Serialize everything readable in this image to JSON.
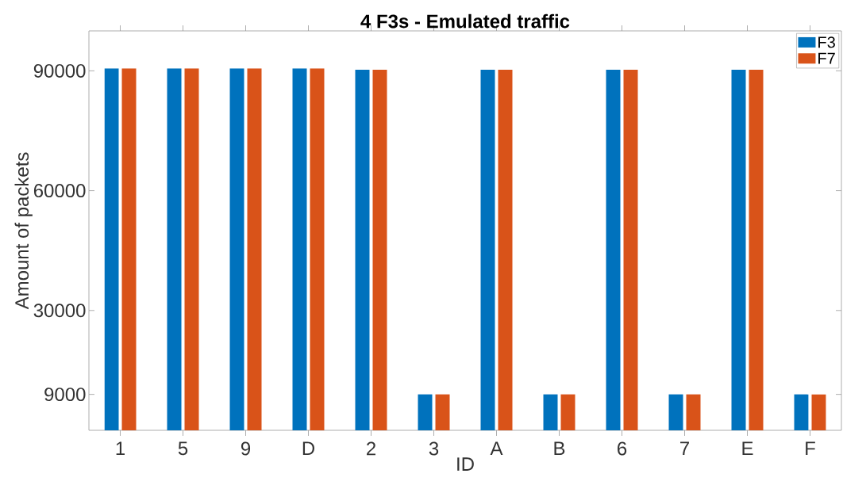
{
  "chart_data": {
    "type": "bar",
    "title": "4 F3s - Emulated traffic",
    "xlabel": "ID",
    "ylabel": "Amount of packets",
    "categories": [
      "1",
      "5",
      "9",
      "D",
      "2",
      "3",
      "A",
      "B",
      "6",
      "7",
      "E",
      "F"
    ],
    "series": [
      {
        "name": "F3",
        "color": "#0072bd",
        "values": [
          90600,
          90600,
          90600,
          90600,
          90300,
          9000,
          90300,
          9000,
          90300,
          9000,
          90300,
          9000
        ]
      },
      {
        "name": "F7",
        "color": "#d95319",
        "values": [
          90600,
          90600,
          90600,
          90600,
          90300,
          9000,
          90300,
          9000,
          90300,
          9000,
          90300,
          9000
        ]
      }
    ],
    "ylim": [
      0,
      100000
    ],
    "yticks": [
      9000,
      30000,
      60000,
      90000
    ],
    "grid": false,
    "legend": "top right"
  }
}
